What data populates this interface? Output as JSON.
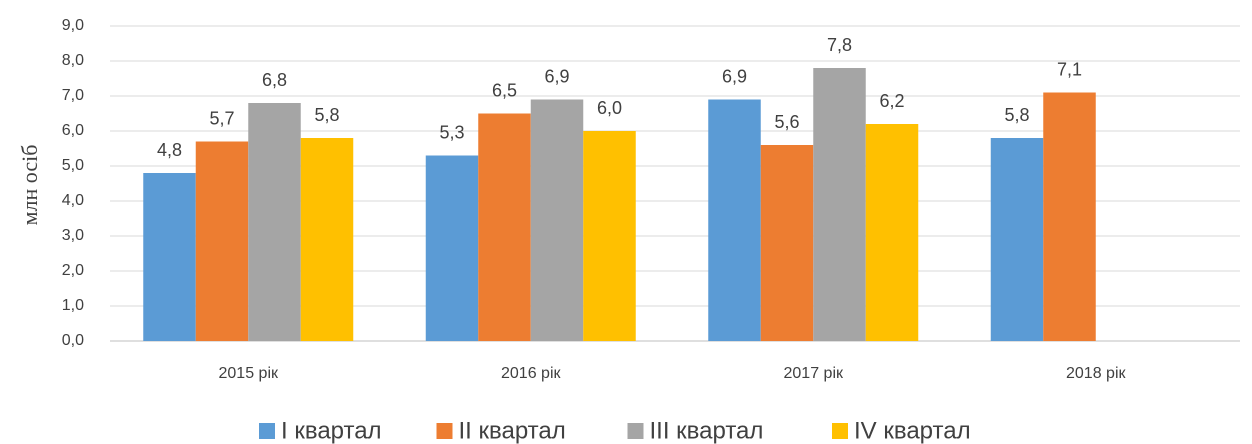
{
  "chart_data": {
    "type": "bar",
    "y_label": "млн осіб",
    "categories": [
      "2015 рік",
      "2016 рік",
      "2017 рік",
      "2018 рік"
    ],
    "series": [
      {
        "name": "I квартал",
        "color": "#5b9bd5",
        "values": [
          4.8,
          5.3,
          6.9,
          5.8
        ],
        "value_labels": [
          "4,8",
          "5,3",
          "6,9",
          "5,8"
        ]
      },
      {
        "name": "II квартал",
        "color": "#ed7d31",
        "values": [
          5.7,
          6.5,
          5.6,
          7.1
        ],
        "value_labels": [
          "5,7",
          "6,5",
          "5,6",
          "7,1"
        ]
      },
      {
        "name": "III квартал",
        "color": "#a5a5a5",
        "values": [
          6.8,
          6.9,
          7.8,
          null
        ],
        "value_labels": [
          "6,8",
          "6,9",
          "7,8",
          null
        ]
      },
      {
        "name": "IV квартал",
        "color": "#ffc000",
        "values": [
          5.8,
          6.0,
          6.2,
          null
        ],
        "value_labels": [
          "5,8",
          "6,0",
          "6,2",
          null
        ]
      }
    ],
    "ylim": [
      0,
      9
    ],
    "yticks": [
      {
        "value": 0,
        "label": "0,0"
      },
      {
        "value": 1,
        "label": "1,0"
      },
      {
        "value": 2,
        "label": "2,0"
      },
      {
        "value": 3,
        "label": "3,0"
      },
      {
        "value": 4,
        "label": "4,0"
      },
      {
        "value": 5,
        "label": "5,0"
      },
      {
        "value": 6,
        "label": "6,0"
      },
      {
        "value": 7,
        "label": "7,0"
      },
      {
        "value": 8,
        "label": "8,0"
      },
      {
        "value": 9,
        "label": "9,0"
      }
    ],
    "grid": true,
    "legend": "bottom"
  }
}
